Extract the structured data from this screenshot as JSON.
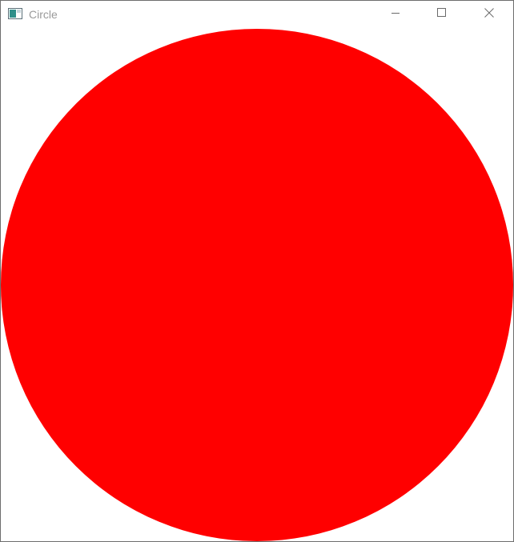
{
  "window": {
    "title": "Circle",
    "icon": "application-window-icon"
  },
  "caption_buttons": {
    "minimize_icon": "minimize-icon",
    "maximize_icon": "maximize-icon",
    "close_icon": "close-icon"
  },
  "canvas": {
    "shape": "circle",
    "fill_color": "#ff0000",
    "background_color": "#ffffff"
  }
}
